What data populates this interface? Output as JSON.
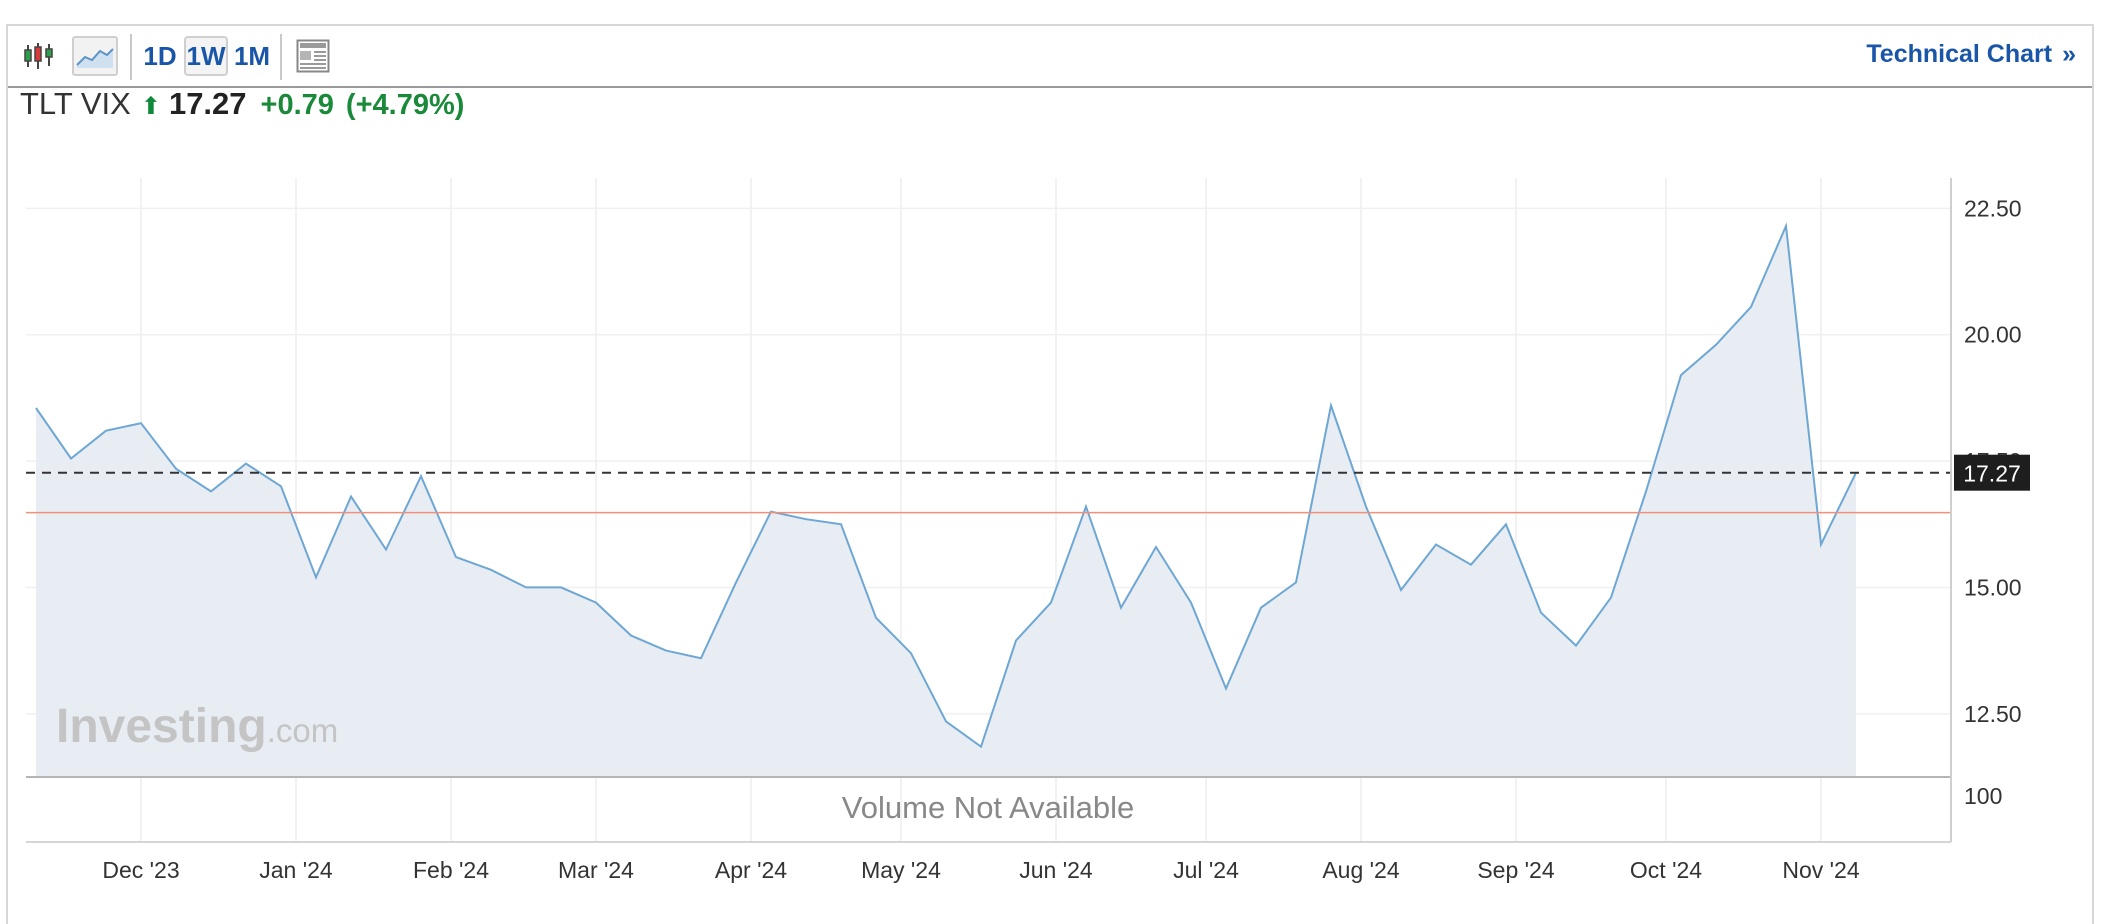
{
  "toolbar": {
    "candles_icon": "candlestick-chart-icon",
    "area_icon": "area-chart-icon",
    "periods": [
      "1D",
      "1W",
      "1M"
    ],
    "active_period": "1W",
    "layout_icon": "chart-layout-icon",
    "technical_chart_label": "Technical Chart",
    "technical_chart_chevron": "»"
  },
  "quote": {
    "symbol": "TLT VIX",
    "arrow": "⬆",
    "price": "17.27",
    "change": "+0.79",
    "change_pct": "(+4.79%)"
  },
  "colors": {
    "line": "#6ea7d3",
    "area": "#e8edf4",
    "positive": "#1a8a3a",
    "ref_line": "#f0907a",
    "last_label_bg": "#1e1e1e",
    "link": "#1a56a8"
  },
  "watermark": {
    "brand": "Investing",
    "suffix": ".com"
  },
  "volume": {
    "message": "Volume Not Available",
    "axis_label": "100"
  },
  "chart_data": {
    "type": "area",
    "title": "",
    "xlabel": "",
    "ylabel": "",
    "ylim": [
      11.25,
      23.1
    ],
    "yticks": [
      "12.50",
      "15.00",
      "17.50",
      "20.00",
      "22.50"
    ],
    "xticks": [
      {
        "label": "Dec '23",
        "date": "2023-12-01"
      },
      {
        "label": "Jan '24",
        "date": "2024-01-01"
      },
      {
        "label": "Feb '24",
        "date": "2024-02-01"
      },
      {
        "label": "Mar '24",
        "date": "2024-03-01"
      },
      {
        "label": "Apr '24",
        "date": "2024-04-01"
      },
      {
        "label": "May '24",
        "date": "2024-05-01"
      },
      {
        "label": "Jun '24",
        "date": "2024-06-01"
      },
      {
        "label": "Jul '24",
        "date": "2024-07-01"
      },
      {
        "label": "Aug '24",
        "date": "2024-08-01"
      },
      {
        "label": "Sep '24",
        "date": "2024-09-01"
      },
      {
        "label": "Oct '24",
        "date": "2024-10-01"
      },
      {
        "label": "Nov '24",
        "date": "2024-11-01"
      }
    ],
    "x_range": [
      "2023-11-08",
      "2024-11-27"
    ],
    "series": [
      {
        "x": [
          "2023-11-10",
          "2023-11-17",
          "2023-11-24",
          "2023-12-01",
          "2023-12-08",
          "2023-12-15",
          "2023-12-22",
          "2023-12-29",
          "2024-01-05",
          "2024-01-12",
          "2024-01-19",
          "2024-01-26",
          "2024-02-02",
          "2024-02-09",
          "2024-02-16",
          "2024-02-23",
          "2024-03-01",
          "2024-03-08",
          "2024-03-15",
          "2024-03-22",
          "2024-03-29",
          "2024-04-05",
          "2024-04-12",
          "2024-04-19",
          "2024-04-26",
          "2024-05-03",
          "2024-05-10",
          "2024-05-17",
          "2024-05-24",
          "2024-05-31",
          "2024-06-07",
          "2024-06-14",
          "2024-06-21",
          "2024-06-28",
          "2024-07-05",
          "2024-07-12",
          "2024-07-19",
          "2024-07-26",
          "2024-08-02",
          "2024-08-09",
          "2024-08-16",
          "2024-08-23",
          "2024-08-30",
          "2024-09-06",
          "2024-09-13",
          "2024-09-20",
          "2024-09-27",
          "2024-10-04",
          "2024-10-11",
          "2024-10-18",
          "2024-10-25",
          "2024-11-01",
          "2024-11-08"
        ],
        "values": [
          18.55,
          17.55,
          18.1,
          18.25,
          17.35,
          16.9,
          17.45,
          17.0,
          15.2,
          16.8,
          15.75,
          17.2,
          15.6,
          15.35,
          15.0,
          15.0,
          14.7,
          14.05,
          13.75,
          13.6,
          15.1,
          16.5,
          16.35,
          16.25,
          14.4,
          13.7,
          12.35,
          11.85,
          13.95,
          14.7,
          16.6,
          14.6,
          15.8,
          14.7,
          13.0,
          14.6,
          15.1,
          18.6,
          16.6,
          14.95,
          15.85,
          15.45,
          16.25,
          14.5,
          13.85,
          14.8,
          16.9,
          19.2,
          19.8,
          20.55,
          22.15,
          15.85,
          17.27
        ]
      }
    ],
    "last_value": 17.27,
    "reference_line": 16.48
  }
}
